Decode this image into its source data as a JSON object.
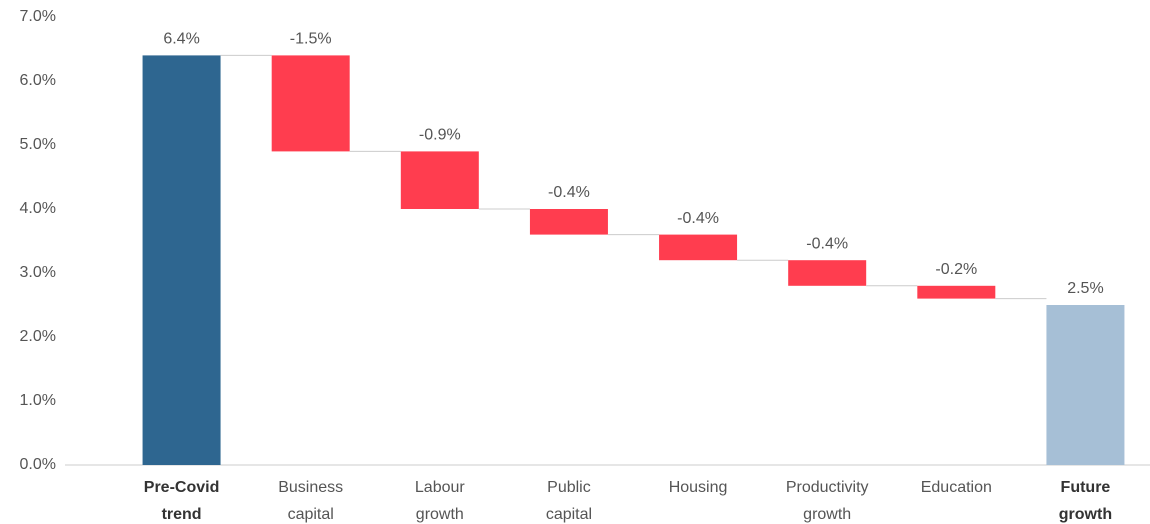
{
  "chart_data": {
    "type": "waterfall",
    "categories": [
      [
        "Pre-Covid",
        "trend"
      ],
      [
        "Business",
        "capital"
      ],
      [
        "Labour",
        "growth"
      ],
      [
        "Public",
        "capital"
      ],
      [
        "Housing"
      ],
      [
        "Productivity",
        "growth"
      ],
      [
        "Education"
      ],
      [
        "Future",
        "growth"
      ]
    ],
    "values": [
      6.4,
      -1.5,
      -0.9,
      -0.4,
      -0.4,
      -0.4,
      -0.2,
      2.5
    ],
    "value_labels": [
      "6.4%",
      "-1.5%",
      "-0.9%",
      "-0.4%",
      "-0.4%",
      "-0.4%",
      "-0.2%",
      "2.5%"
    ],
    "measures": [
      "total",
      "relative",
      "relative",
      "relative",
      "relative",
      "relative",
      "relative",
      "total"
    ],
    "colors": [
      "#2e6690",
      "#ff3d4f",
      "#ff3d4f",
      "#ff3d4f",
      "#ff3d4f",
      "#ff3d4f",
      "#ff3d4f",
      "#a6bfd6"
    ],
    "ylim": [
      0,
      7
    ],
    "yticks": [
      {
        "value": 0,
        "label": "0.0%"
      },
      {
        "value": 1,
        "label": "1.0%"
      },
      {
        "value": 2,
        "label": "2.0%"
      },
      {
        "value": 3,
        "label": "3.0%"
      },
      {
        "value": 4,
        "label": "4.0%"
      },
      {
        "value": 5,
        "label": "5.0%"
      },
      {
        "value": 6,
        "label": "6.0%"
      },
      {
        "value": 7,
        "label": "7.0%"
      }
    ],
    "grid": false
  }
}
